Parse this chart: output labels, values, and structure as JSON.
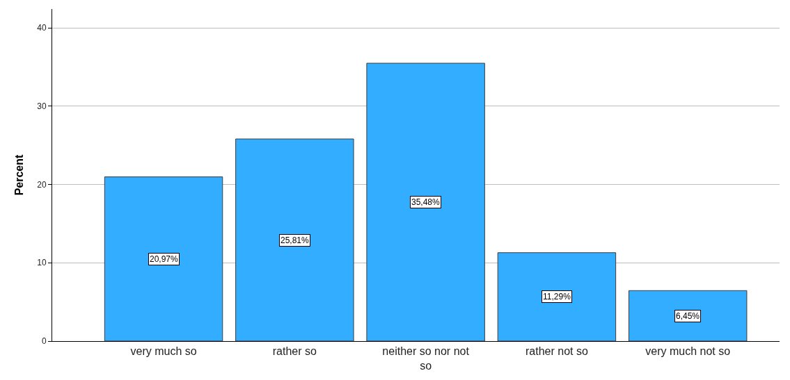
{
  "chart_data": {
    "type": "bar",
    "ylabel": "Percent",
    "categories": [
      "very much so",
      "rather so",
      "neither so nor not so",
      "rather not so",
      "very much not so"
    ],
    "values": [
      20.97,
      25.81,
      35.48,
      11.29,
      6.45
    ],
    "value_labels": [
      "20,97%",
      "25,81%",
      "35,48%",
      "11,29%",
      "6,45%"
    ],
    "color": "#33adff",
    "ylim": [
      0,
      42.4
    ],
    "yticks": [
      0,
      10,
      20,
      30,
      40
    ],
    "grid": "y"
  }
}
